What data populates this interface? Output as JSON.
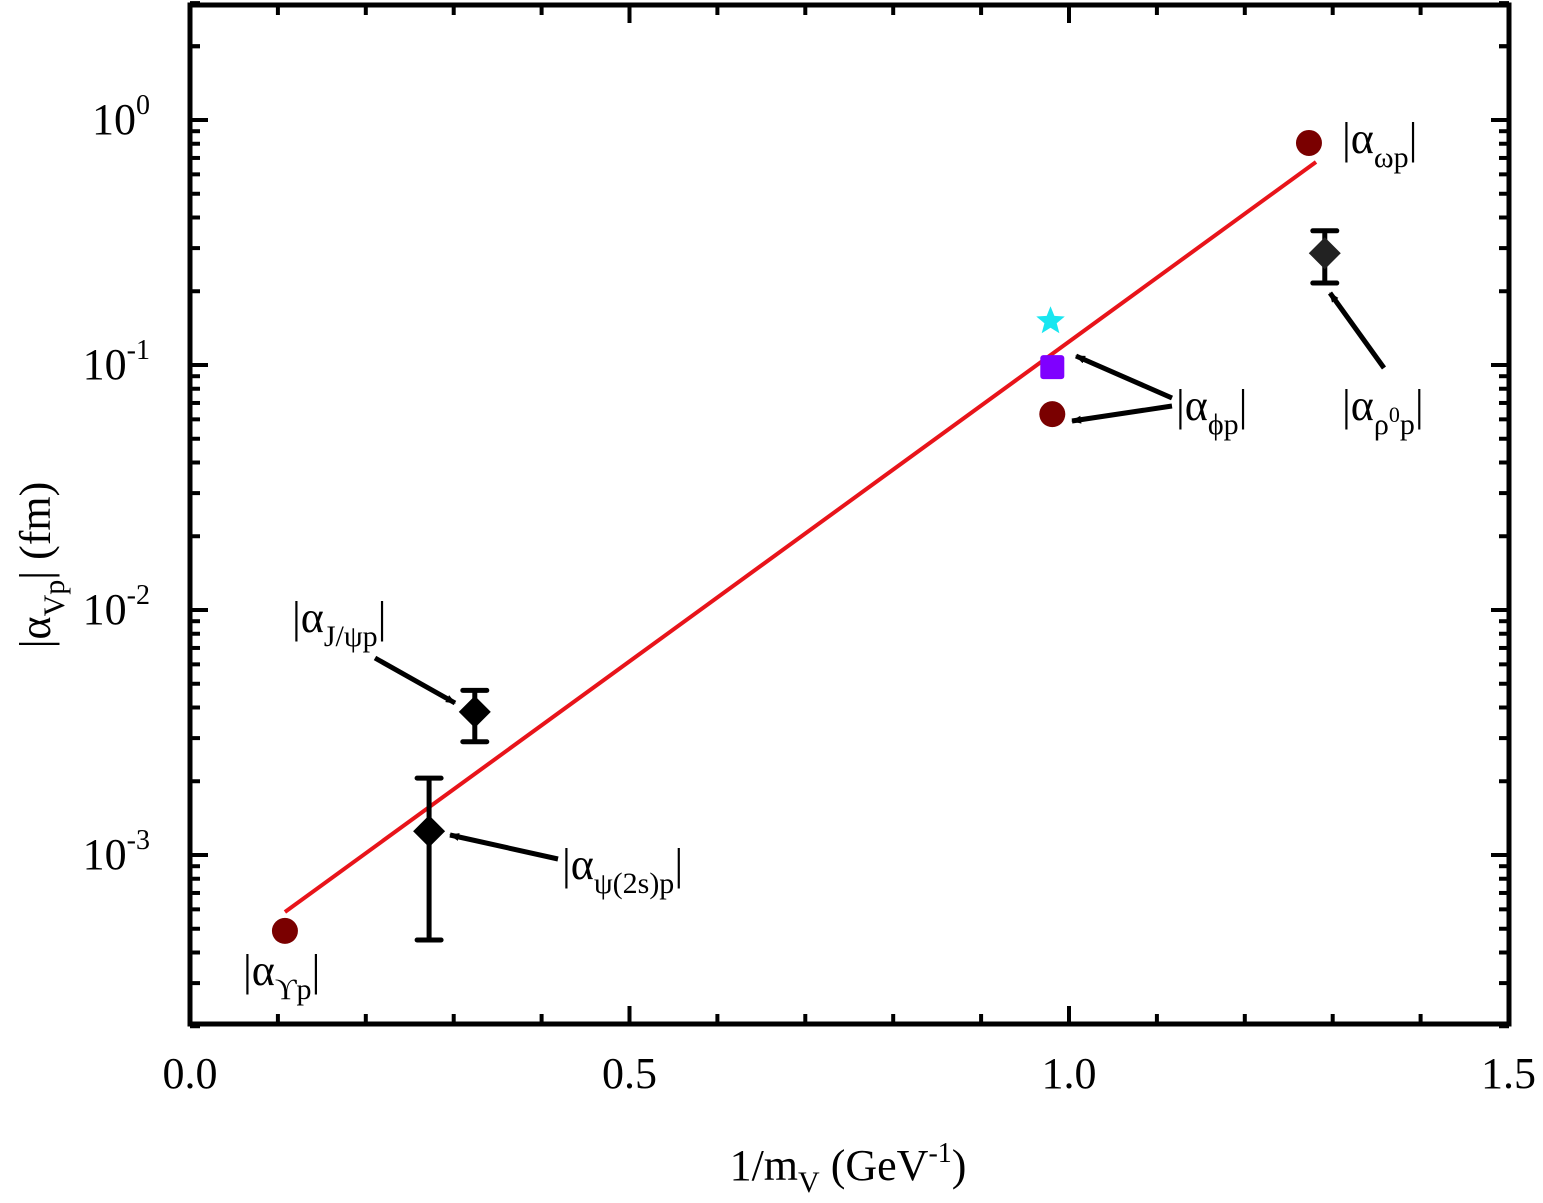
{
  "chart_data": {
    "type": "scatter",
    "xlabel": {
      "main": "1/m",
      "sub": "V",
      "rest": " (GeV",
      "sup": "-1",
      "close": ")"
    },
    "ylabel": {
      "open": "|α",
      "sub": "Vp",
      "close": "| (fm)"
    },
    "xlim": [
      0.0,
      1.5
    ],
    "ylim": [
      0.0002,
      3
    ],
    "yscale": "log",
    "grid": false,
    "x_ticks": [
      {
        "value": 0.0,
        "label": "0.0"
      },
      {
        "value": 0.5,
        "label": "0.5"
      },
      {
        "value": 1.0,
        "label": "1.0"
      },
      {
        "value": 1.5,
        "label": "1.5"
      }
    ],
    "x_minor_step": 0.1,
    "y_ticks": [
      {
        "value": 1,
        "base": "10",
        "exp": "0"
      },
      {
        "value": 0.1,
        "base": "10",
        "exp": "-1"
      },
      {
        "value": 0.01,
        "base": "10",
        "exp": "-2"
      },
      {
        "value": 0.001,
        "base": "10",
        "exp": "-3"
      }
    ],
    "colors": {
      "fit_line": "#e8141a",
      "circle": "#7a0000",
      "diamond": "#000000",
      "diamond_rho": "#222222",
      "square": "#7f00ff",
      "star": "#19e6f0",
      "axis": "#000000"
    },
    "fit_line": {
      "x": [
        0.108,
        1.281
      ],
      "y": [
        0.000585,
        0.674
      ]
    },
    "series": [
      {
        "name": "circles",
        "marker": "circle",
        "points": [
          {
            "id": "upsilon",
            "x": 0.108,
            "y": 0.00049
          },
          {
            "id": "phi",
            "x": 0.981,
            "y": 0.063
          },
          {
            "id": "omega",
            "x": 1.273,
            "y": 0.806
          }
        ]
      },
      {
        "name": "diamonds",
        "marker": "diamond",
        "points": [
          {
            "id": "psi2s",
            "x": 0.272,
            "y": 0.00125,
            "ylow": 0.00045,
            "yhigh": 0.00206
          },
          {
            "id": "jpsi",
            "x": 0.324,
            "y": 0.00384,
            "ylow": 0.0029,
            "yhigh": 0.0047
          },
          {
            "id": "rho0",
            "x": 1.291,
            "y": 0.286,
            "ylow": 0.216,
            "yhigh": 0.353
          }
        ]
      },
      {
        "name": "square",
        "marker": "square",
        "points": [
          {
            "id": "phi-square",
            "x": 0.981,
            "y": 0.098
          }
        ]
      },
      {
        "name": "star",
        "marker": "star",
        "points": [
          {
            "id": "phi-star",
            "x": 0.979,
            "y": 0.151
          }
        ]
      }
    ],
    "annotations": [
      {
        "id": "omega",
        "open": "|α",
        "sub": "ωp",
        "close": "|"
      },
      {
        "id": "rho0",
        "open": "|α",
        "sub": "ρ",
        "subsup": "0",
        "sub2": "p",
        "close": "|"
      },
      {
        "id": "phi",
        "open": "|α",
        "sub": "ϕp",
        "close": "|"
      },
      {
        "id": "jpsi",
        "open": "|α",
        "sub": "J/ψp",
        "close": "|"
      },
      {
        "id": "psi2s",
        "open": "|α",
        "sub": "ψ(2s)p",
        "close": "|"
      },
      {
        "id": "upsilon",
        "open": "|α",
        "sub": "ϒp",
        "close": "|"
      }
    ]
  }
}
